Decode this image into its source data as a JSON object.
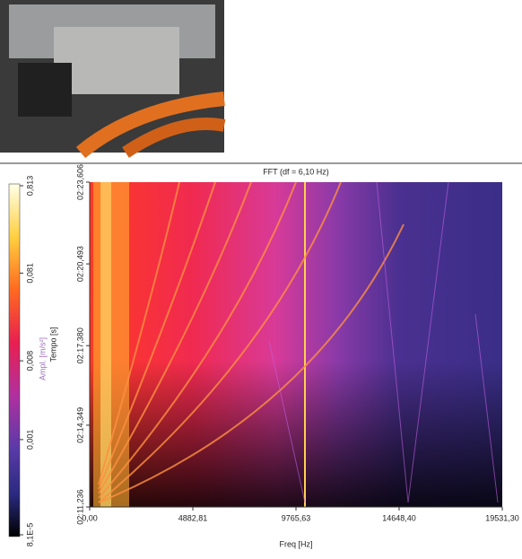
{
  "chart_data": {
    "type": "heatmap",
    "title": "FFT (df = 6,10 Hz)",
    "xlabel": "Freq [Hz]",
    "ylabel": "Tempo [s]",
    "xlim": [
      0,
      19531.3
    ],
    "xticks": [
      {
        "value": 0,
        "label": "0,00"
      },
      {
        "value": 4882.81,
        "label": "4882,81"
      },
      {
        "value": 9765.63,
        "label": "9765,63"
      },
      {
        "value": 14648.4,
        "label": "14648,40"
      },
      {
        "value": 19531.3,
        "label": "19531,30"
      }
    ],
    "ylim": [
      131.236,
      143.606
    ],
    "yticks": [
      {
        "value": 131.236,
        "label": "02:11,236"
      },
      {
        "value": 134.349,
        "label": "02:14,349"
      },
      {
        "value": 137.38,
        "label": "02:17,380"
      },
      {
        "value": 140.493,
        "label": "02:20,493"
      },
      {
        "value": 143.606,
        "label": "02:23,606"
      }
    ],
    "colorbar": {
      "label": "Ampl. [m/s²]",
      "log": true,
      "lim": [
        8.1e-05,
        0.813
      ],
      "ticks": [
        {
          "value": 8.1e-05,
          "label": "8,1E-5"
        },
        {
          "value": 0.001,
          "label": "0,001"
        },
        {
          "value": 0.008,
          "label": "0,008"
        },
        {
          "value": 0.081,
          "label": "0,081"
        },
        {
          "value": 0.813,
          "label": "0,813"
        }
      ]
    }
  }
}
